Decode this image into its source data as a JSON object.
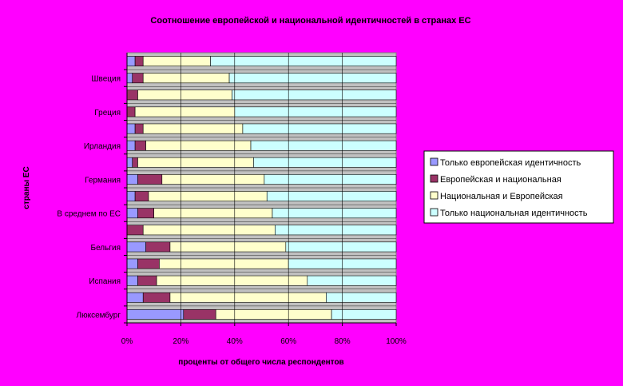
{
  "chart_data": {
    "type": "bar",
    "stacked": "percent",
    "orientation": "horizontal",
    "title": "Соотношение европейской и национальной идентичностей в странах ЕС",
    "xlabel": "проценты от общего числа респондентов",
    "ylabel": "страны ЕС",
    "xlim": [
      0,
      100
    ],
    "x_ticks": [
      "0%",
      "20%",
      "40%",
      "60%",
      "80%",
      "100%"
    ],
    "grid": true,
    "legend_position": "right",
    "categories": [
      "Люксембург",
      "",
      "Испания",
      "",
      "Бельгия",
      "",
      "В среднем по ЕС",
      "",
      "Германия",
      "",
      "Ирландия",
      "",
      "Греция",
      "",
      "Швеция",
      ""
    ],
    "series": [
      {
        "name": "Только европейская идентичность",
        "color": "#9999FF",
        "values": [
          21,
          6,
          4,
          4,
          7,
          0,
          4,
          3,
          4,
          2,
          3,
          3,
          0,
          0,
          2,
          3
        ]
      },
      {
        "name": "Европейская и национальная",
        "color": "#993366",
        "values": [
          12,
          10,
          7,
          8,
          9,
          6,
          6,
          5,
          9,
          2,
          4,
          3,
          3,
          4,
          4,
          3
        ]
      },
      {
        "name": "Национальная и Европейская",
        "color": "#FFFFCC",
        "values": [
          43,
          58,
          56,
          48,
          43,
          49,
          44,
          44,
          38,
          43,
          39,
          37,
          37,
          35,
          32,
          25
        ]
      },
      {
        "name": "Только национальная идентичность",
        "color": "#CCFFFF",
        "values": [
          24,
          26,
          33,
          40,
          41,
          45,
          46,
          48,
          49,
          53,
          54,
          57,
          60,
          61,
          62,
          69
        ]
      }
    ]
  }
}
